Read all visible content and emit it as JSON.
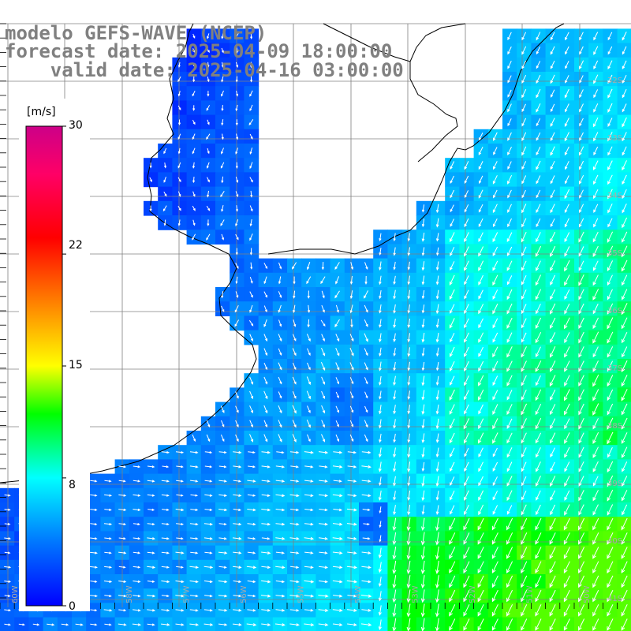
{
  "title_lines": [
    "modelo GEFS-WAVE (NCEP)",
    "forecast date: 2025-04-09 18:00:00",
    "    valid date: 2025-04-16 03:00:00"
  ],
  "colorbar": {
    "unit": "[m/s]",
    "ticks": [
      "30",
      "22",
      "15",
      "8",
      "0"
    ],
    "tick_values": [
      30,
      22,
      15,
      8,
      0
    ],
    "vmin": 0,
    "vmax": 30,
    "stops": [
      {
        "v": 0,
        "color": "#0000ff"
      },
      {
        "v": 4,
        "color": "#0077ff"
      },
      {
        "v": 8,
        "color": "#00ffff"
      },
      {
        "v": 12,
        "color": "#00ff00"
      },
      {
        "v": 15,
        "color": "#ffff00"
      },
      {
        "v": 19,
        "color": "#ff8000"
      },
      {
        "v": 23,
        "color": "#ff0000"
      },
      {
        "v": 27,
        "color": "#ff0066"
      },
      {
        "v": 30,
        "color": "#cc0088"
      }
    ]
  },
  "latitude_labels": [
    "32S",
    "33S",
    "34S",
    "35S",
    "36S",
    "37S",
    "38S",
    "39S",
    "40S",
    "41S"
  ],
  "longitude_labels": [
    "60W",
    "59W",
    "58W",
    "57W",
    "56W",
    "55W",
    "54W",
    "53W",
    "52W",
    "51W",
    "50W"
  ],
  "colors": {
    "land": "#ffffff",
    "coast": "#000000",
    "grid": "#808080",
    "arrow": "#ffffff"
  }
}
